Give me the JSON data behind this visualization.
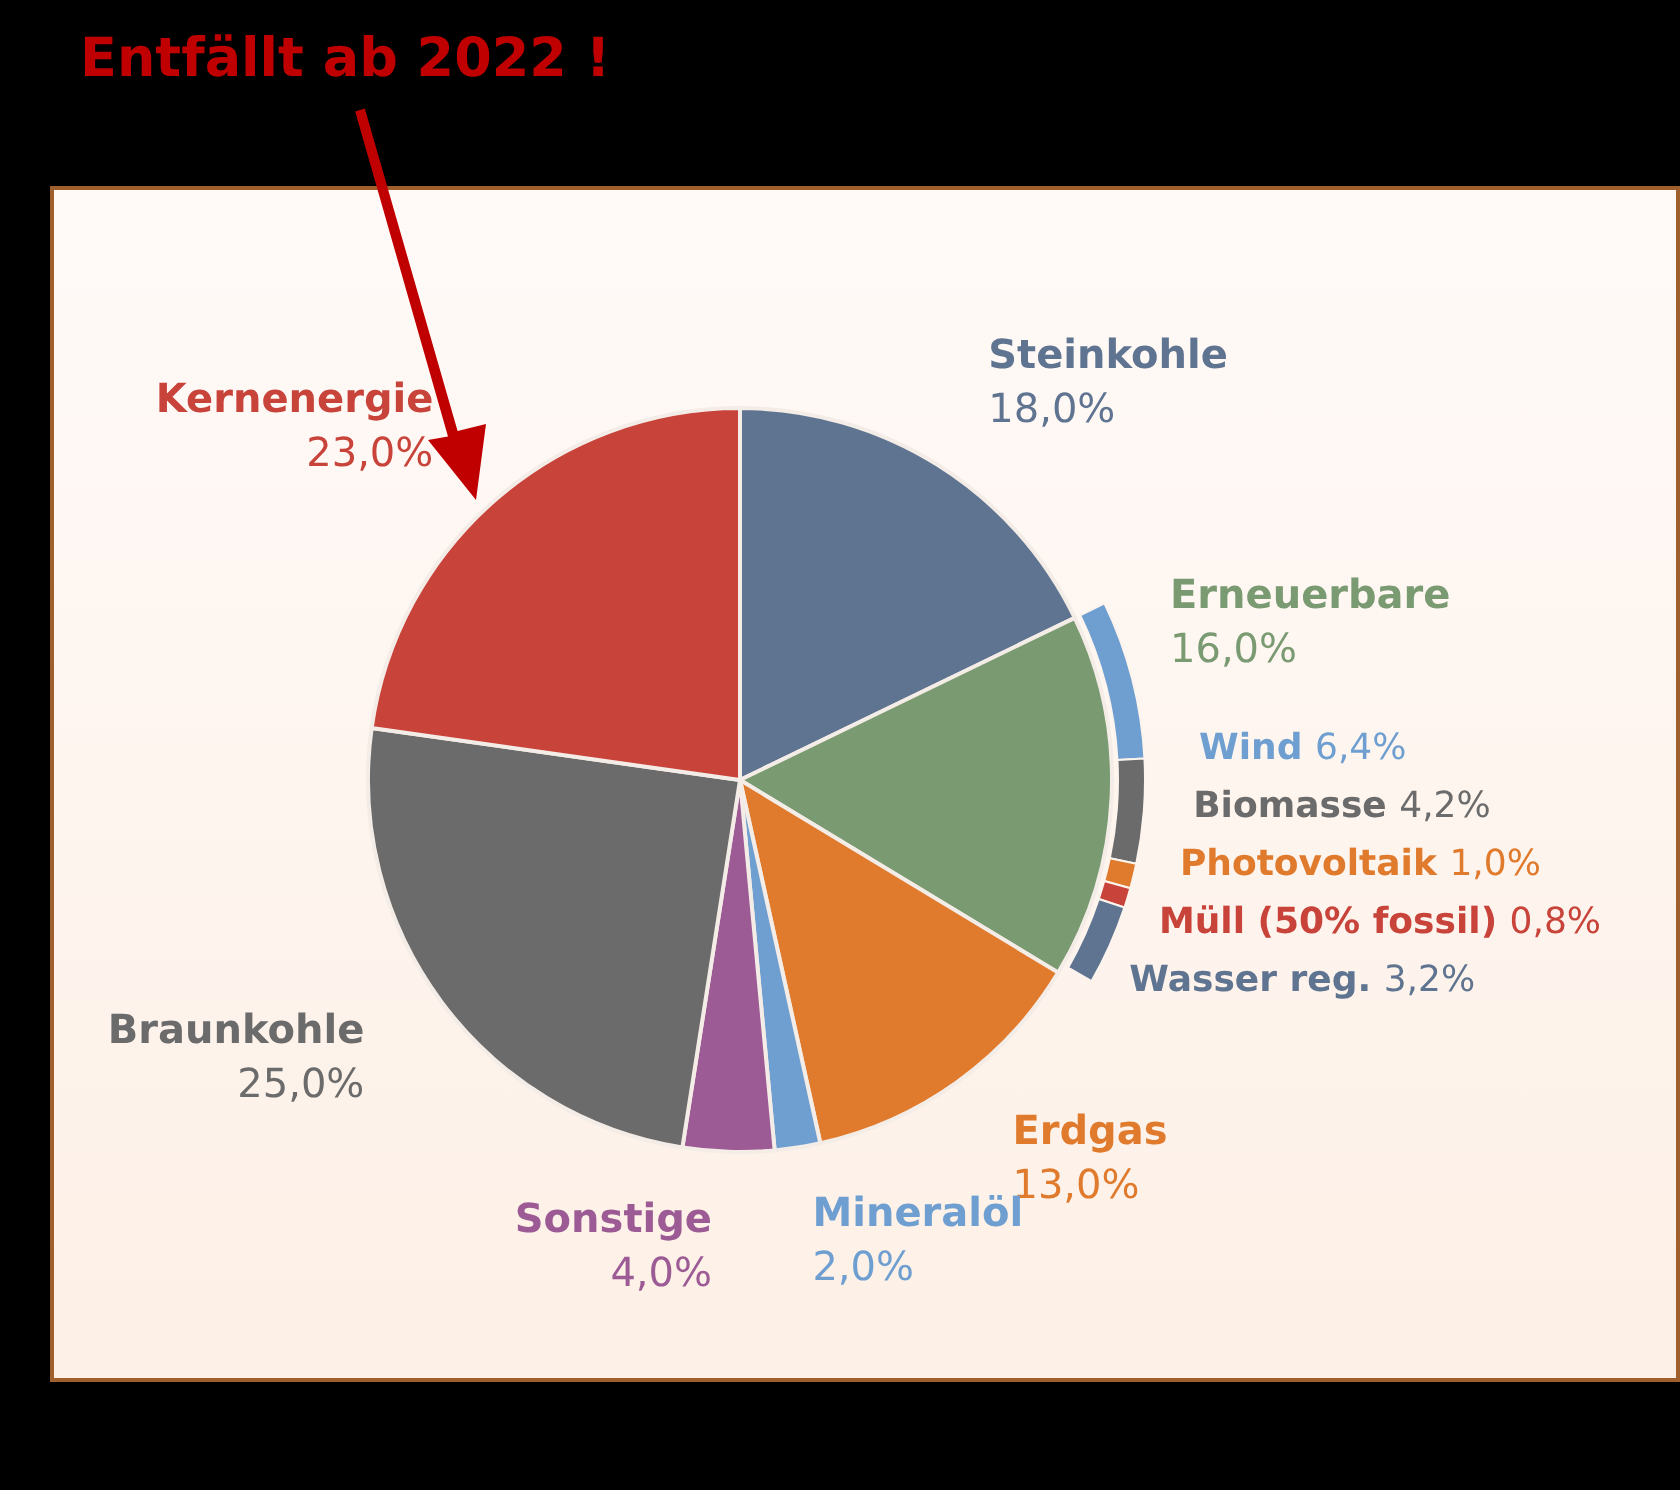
{
  "chart_data": [
    {
      "type": "pie",
      "categories": [
        "Steinkohle",
        "Erneuerbare",
        "Erdgas",
        "Mineralöl",
        "Sonstige",
        "Braunkohle",
        "Kernenergie"
      ],
      "values": [
        18.0,
        16.0,
        13.0,
        2.0,
        4.0,
        25.0,
        23.0
      ],
      "colors": [
        "#5f7490",
        "#7a9a72",
        "#e07b2e",
        "#6e9fd0",
        "#9c5b94",
        "#6b6b6b",
        "#c8433a"
      ],
      "value_labels": [
        "18,0%",
        "16,0%",
        "13,0%",
        "2,0%",
        "4,0%",
        "25,0%",
        "23,0%"
      ],
      "annotations": [
        "Entfällt ab 2022 !"
      ]
    },
    {
      "type": "donut",
      "categories": [
        "Wind",
        "Biomasse",
        "Photovoltaik",
        "Müll (50% fossil)",
        "Wasser reg."
      ],
      "values": [
        6.4,
        4.2,
        1.0,
        0.8,
        3.2
      ],
      "colors": [
        "#6e9fd0",
        "#6b6b6b",
        "#e07b2e",
        "#c8433a",
        "#5f7490"
      ],
      "value_labels": [
        "6,4%",
        "4,2%",
        "1,0%",
        "0,8%",
        "3,2%"
      ]
    }
  ]
}
